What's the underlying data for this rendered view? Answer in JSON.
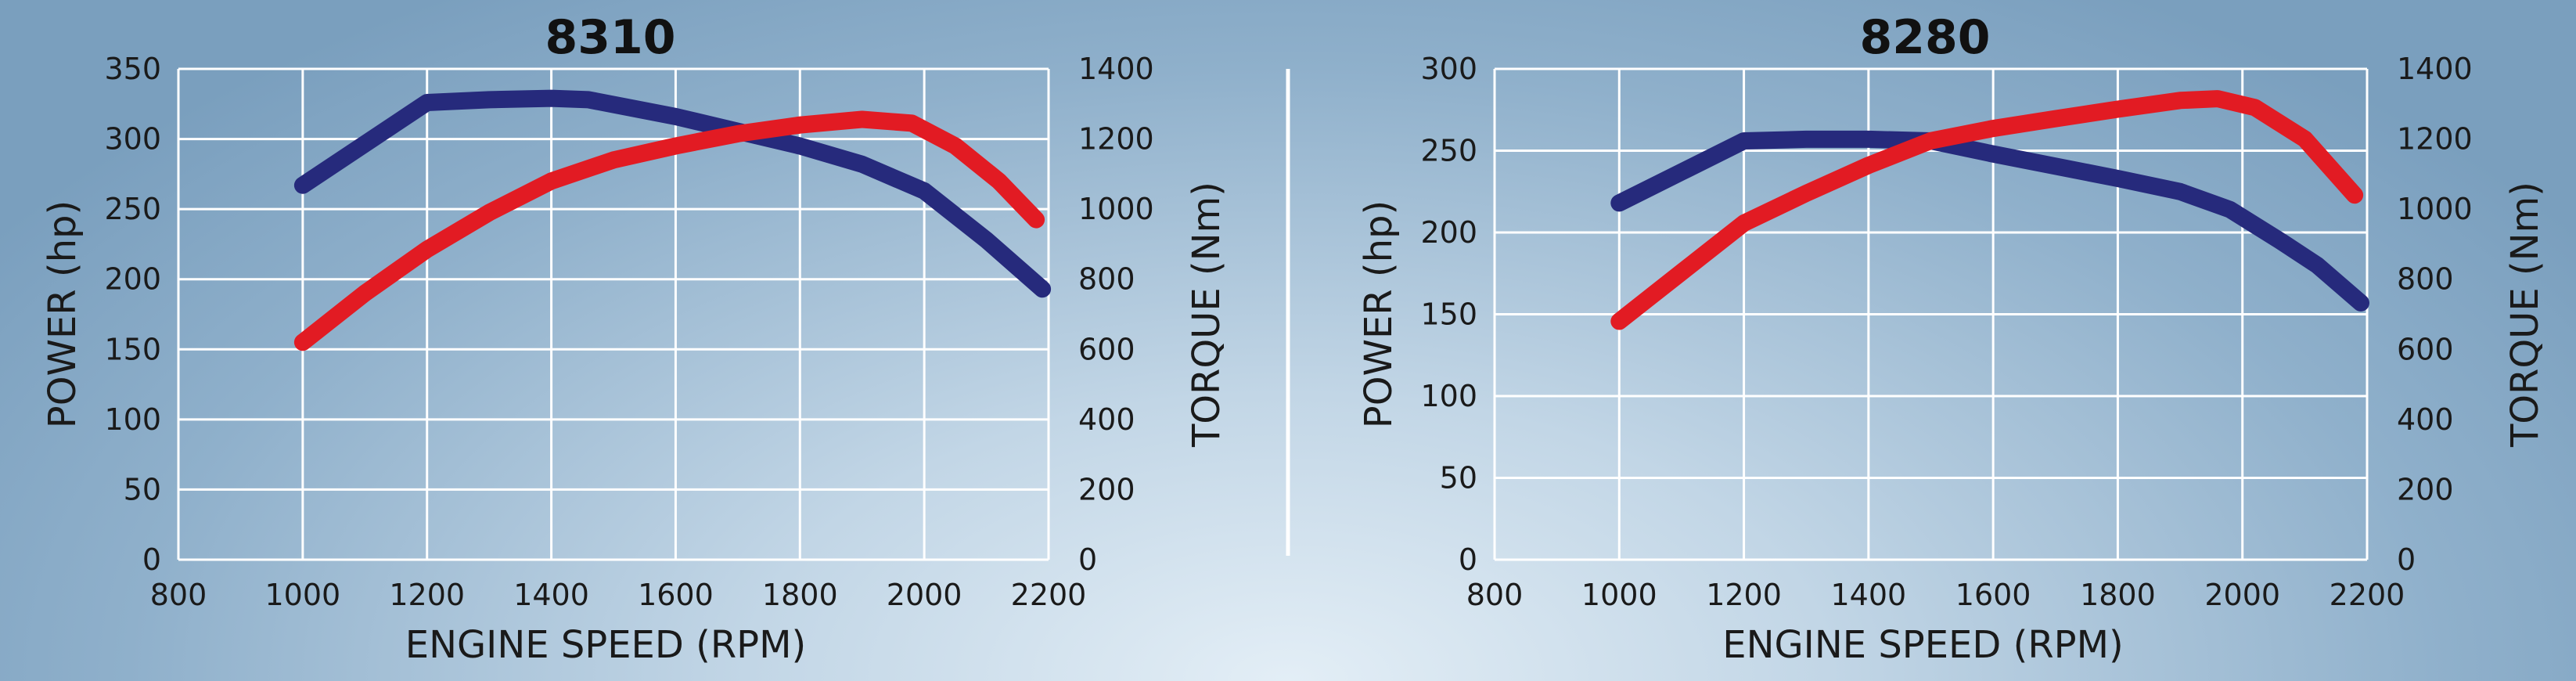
{
  "chart_data": [
    {
      "type": "line",
      "title": "8310",
      "xlabel": "ENGINE SPEED (RPM)",
      "ylabel_left": "POWER (hp)",
      "ylabel_right": "TORQUE (Nm)",
      "xlim": [
        800,
        2200
      ],
      "xticks": [
        800,
        1000,
        1200,
        1400,
        1600,
        1800,
        2000,
        2200
      ],
      "ylim_left": [
        0,
        350
      ],
      "yticks_left": [
        0,
        50,
        100,
        150,
        200,
        250,
        300,
        350
      ],
      "ylim_right": [
        0,
        1400
      ],
      "yticks_right": [
        0,
        200,
        400,
        600,
        800,
        1000,
        1200,
        1400
      ],
      "grid": true,
      "series": [
        {
          "axis": "left",
          "color": "#262a7c",
          "x": [
            1000,
            1200,
            1300,
            1400,
            1460,
            1600,
            1800,
            1900,
            2000,
            2100,
            2190
          ],
          "values": [
            267,
            326,
            328,
            329,
            328,
            316,
            295,
            282,
            263,
            228,
            193
          ]
        },
        {
          "axis": "right",
          "color": "#e21b23",
          "x": [
            1000,
            1100,
            1200,
            1300,
            1400,
            1500,
            1600,
            1700,
            1800,
            1900,
            1980,
            2050,
            2120,
            2180
          ],
          "values": [
            620,
            760,
            885,
            990,
            1080,
            1140,
            1180,
            1215,
            1240,
            1256,
            1245,
            1180,
            1080,
            970
          ]
        }
      ]
    },
    {
      "type": "line",
      "title": "8280",
      "xlabel": "ENGINE SPEED (RPM)",
      "ylabel_left": "POWER (hp)",
      "ylabel_right": "TORQUE (Nm)",
      "xlim": [
        800,
        2200
      ],
      "xticks": [
        800,
        1000,
        1200,
        1400,
        1600,
        1800,
        2000,
        2200
      ],
      "ylim_left": [
        0,
        300
      ],
      "yticks_left": [
        0,
        50,
        100,
        150,
        200,
        250,
        300
      ],
      "ylim_right": [
        0,
        1400
      ],
      "yticks_right": [
        0,
        200,
        400,
        600,
        800,
        1000,
        1200,
        1400
      ],
      "grid": true,
      "series": [
        {
          "axis": "left",
          "color": "#262a7c",
          "x": [
            1000,
            1100,
            1200,
            1300,
            1400,
            1500,
            1600,
            1800,
            1900,
            1980,
            2060,
            2120,
            2190
          ],
          "values": [
            218,
            237,
            256,
            257,
            257,
            256,
            248,
            233,
            225,
            214,
            195,
            180,
            157
          ]
        },
        {
          "axis": "right",
          "color": "#e21b23",
          "x": [
            1000,
            1100,
            1200,
            1300,
            1400,
            1500,
            1600,
            1700,
            1800,
            1900,
            1960,
            2020,
            2100,
            2180
          ],
          "values": [
            680,
            820,
            960,
            1045,
            1125,
            1195,
            1230,
            1258,
            1285,
            1310,
            1315,
            1290,
            1200,
            1040
          ]
        }
      ]
    }
  ]
}
